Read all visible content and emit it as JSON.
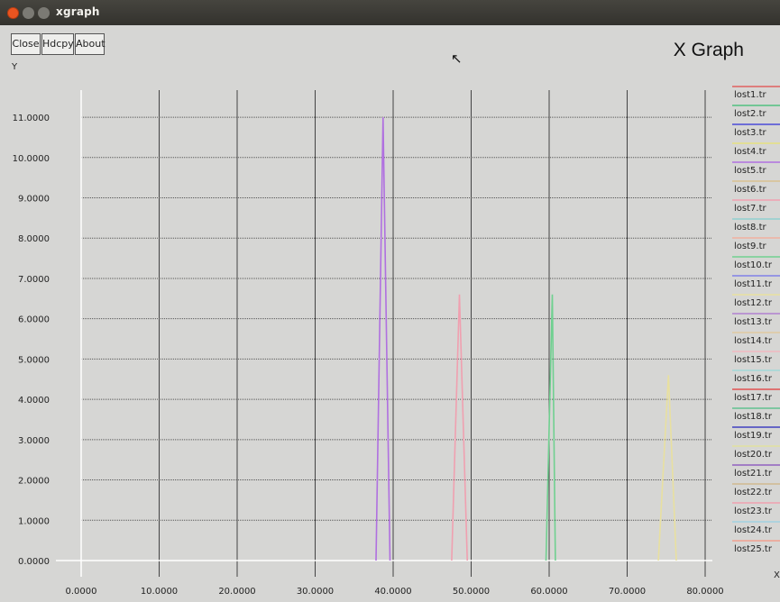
{
  "window": {
    "title": "xgraph"
  },
  "toolbar": {
    "close_label": "Close",
    "hdcpy_label": "Hdcpy",
    "about_label": "About"
  },
  "graph_title": "X Graph",
  "chart_data": {
    "type": "line",
    "ylabel": "Y",
    "xlabel": "X",
    "xlim": [
      -5,
      90
    ],
    "ylim": [
      0,
      11.5
    ],
    "grid": true,
    "legend_placement": "right",
    "y_ticks": [
      "0.0000",
      "1.0000",
      "2.0000",
      "3.0000",
      "4.0000",
      "5.0000",
      "6.0000",
      "7.0000",
      "8.0000",
      "9.0000",
      "10.0000",
      "11.0000"
    ],
    "x_ticks": [
      "0.0000",
      "10.0000",
      "20.0000",
      "30.0000",
      "40.0000",
      "50.0000",
      "60.0000",
      "70.0000",
      "80.0000"
    ],
    "series": [
      {
        "name": "lost1.tr",
        "color": "#e06060",
        "points": []
      },
      {
        "name": "lost2.tr",
        "color": "#50c080",
        "points": []
      },
      {
        "name": "lost3.tr",
        "color": "#4a4ad8",
        "points": []
      },
      {
        "name": "lost4.tr",
        "color": "#e6e080",
        "points": []
      },
      {
        "name": "lost5.tr",
        "color": "#b070e0",
        "points": [
          [
            37.8,
            0
          ],
          [
            38.7,
            11
          ],
          [
            39.6,
            0
          ]
        ]
      },
      {
        "name": "lost6.tr",
        "color": "#d8c090",
        "points": []
      },
      {
        "name": "lost7.tr",
        "color": "#f0a0b0",
        "points": [
          [
            47.5,
            0
          ],
          [
            48.5,
            6.6
          ],
          [
            49.5,
            0
          ]
        ]
      },
      {
        "name": "lost8.tr",
        "color": "#90d0d0",
        "points": []
      },
      {
        "name": "lost9.tr",
        "color": "#f0b0a0",
        "points": []
      },
      {
        "name": "lost10.tr",
        "color": "#70d090",
        "points": [
          [
            59.6,
            0
          ],
          [
            60.4,
            6.6
          ],
          [
            60.8,
            0
          ]
        ]
      },
      {
        "name": "lost11.tr",
        "color": "#8080e8",
        "points": []
      },
      {
        "name": "lost12.tr",
        "color": "#e8e0a0",
        "points": [
          [
            74,
            0
          ],
          [
            75.3,
            4.6
          ],
          [
            76.3,
            0
          ]
        ]
      },
      {
        "name": "lost13.tr",
        "color": "#b080d0",
        "points": []
      },
      {
        "name": "lost14.tr",
        "color": "#e0c8a0",
        "points": []
      },
      {
        "name": "lost15.tr",
        "color": "#f0b8c0",
        "points": []
      },
      {
        "name": "lost16.tr",
        "color": "#a0d8d8",
        "points": []
      },
      {
        "name": "lost17.tr",
        "color": "#e05050",
        "points": []
      },
      {
        "name": "lost18.tr",
        "color": "#60c090",
        "points": []
      },
      {
        "name": "lost19.tr",
        "color": "#4040c0",
        "points": []
      },
      {
        "name": "lost20.tr",
        "color": "#e0e0a0",
        "points": []
      },
      {
        "name": "lost21.tr",
        "color": "#9060c0",
        "points": []
      },
      {
        "name": "lost22.tr",
        "color": "#d0b890",
        "points": []
      },
      {
        "name": "lost23.tr",
        "color": "#f0a0b0",
        "points": []
      },
      {
        "name": "lost24.tr",
        "color": "#a0d0e0",
        "points": []
      },
      {
        "name": "lost25.tr",
        "color": "#f0a090",
        "points": []
      }
    ]
  }
}
